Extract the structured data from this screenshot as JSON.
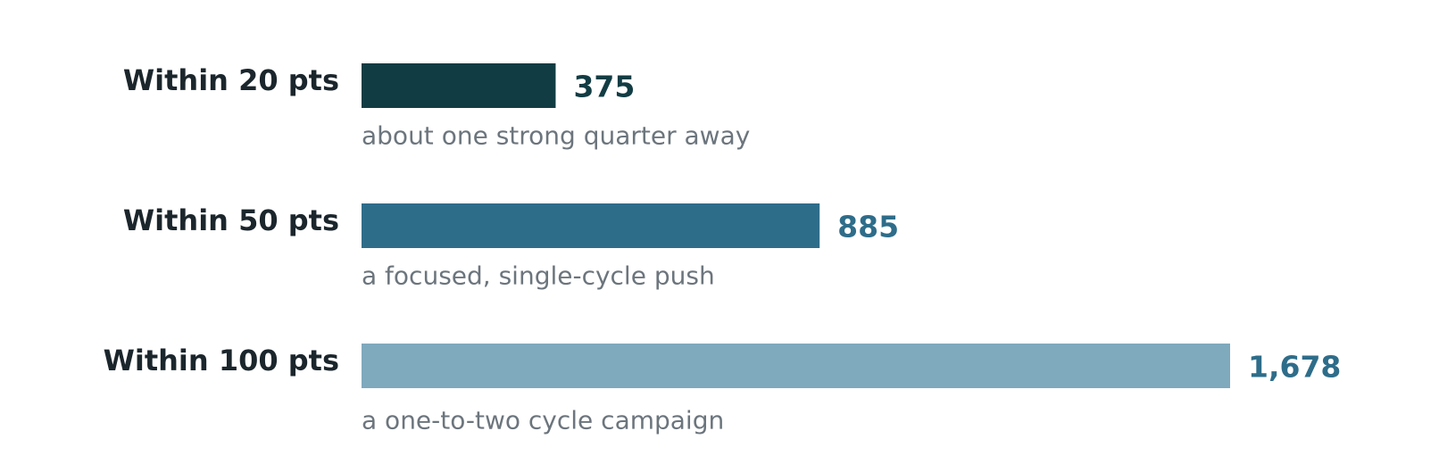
{
  "chart_data": {
    "type": "bar",
    "orientation": "horizontal",
    "categories": [
      "Within 20 pts",
      "Within 50 pts",
      "Within 100 pts"
    ],
    "values": [
      375,
      885,
      1678
    ],
    "value_labels": [
      "375",
      "885",
      "1,678"
    ],
    "colors": [
      "#123c44",
      "#2e6d8a",
      "#7fa9bd"
    ],
    "label_colors": [
      "#123c44",
      "#2e6d8a",
      "#2e6d8a"
    ],
    "annotations": [
      "about one strong quarter away",
      "a focused, single-cycle push",
      "a one-to-two cycle campaign"
    ]
  }
}
